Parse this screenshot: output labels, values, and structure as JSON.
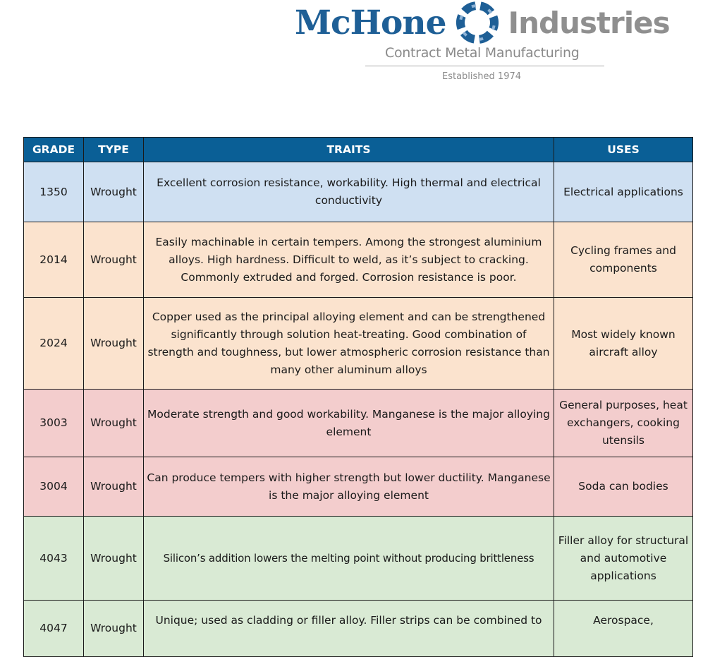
{
  "brand": {
    "name_left": "McHone",
    "name_right": "Industries",
    "tagline": "Contract Metal Manufacturing",
    "established": "Established 1974",
    "colors": {
      "primary_blue": "#1e5f96",
      "gray": "#8f8f8f"
    }
  },
  "table": {
    "headers": {
      "grade": "GRADE",
      "type": "TYPE",
      "traits": "TRAITS",
      "uses": "USES"
    },
    "header_color": "#0a5f96",
    "rows": [
      {
        "grade": "1350",
        "type": "Wrought",
        "traits": "Excellent corrosion resistance, workability. High thermal and electrical conductivity",
        "uses": "Electrical applications",
        "row_color": "#cfe0f2"
      },
      {
        "grade": "2014",
        "type": "Wrought",
        "traits": "Easily machinable in certain tempers. Among the strongest aluminium alloys. High hardness. Difficult to weld, as it’s subject to cracking. Commonly extruded and forged. Corrosion resistance is poor.",
        "uses": "Cycling frames and components",
        "row_color": "#fbe3ce"
      },
      {
        "grade": "2024",
        "type": "Wrought",
        "traits": "Copper used as the principal alloying element and can be strengthened significantly through solution heat-treating. Good combination of strength and toughness, but lower atmospheric corrosion resistance than many other aluminum alloys",
        "uses": "Most widely known aircraft alloy",
        "row_color": "#fbe3ce"
      },
      {
        "grade": "3003",
        "type": "Wrought",
        "traits": "Moderate strength and good workability. Manganese is the major alloying element",
        "uses": "General purposes, heat exchangers, cooking utensils",
        "row_color": "#f3cdcd"
      },
      {
        "grade": "3004",
        "type": "Wrought",
        "traits": "Can produce tempers with higher strength but lower ductility. Manganese is the major alloying element",
        "uses": "Soda can bodies",
        "row_color": "#f3cdcd"
      },
      {
        "grade": "4043",
        "type": "Wrought",
        "traits": "Silicon’s addition lowers the melting point without producing brittleness",
        "uses": "Filler alloy for structural and automotive applications",
        "row_color": "#d9ead4"
      },
      {
        "grade": "4047",
        "type": "Wrought",
        "traits": "Unique; used as cladding or filler alloy. Filler strips can be combined to",
        "uses": "Aerospace,",
        "row_color": "#d9ead4"
      }
    ]
  }
}
